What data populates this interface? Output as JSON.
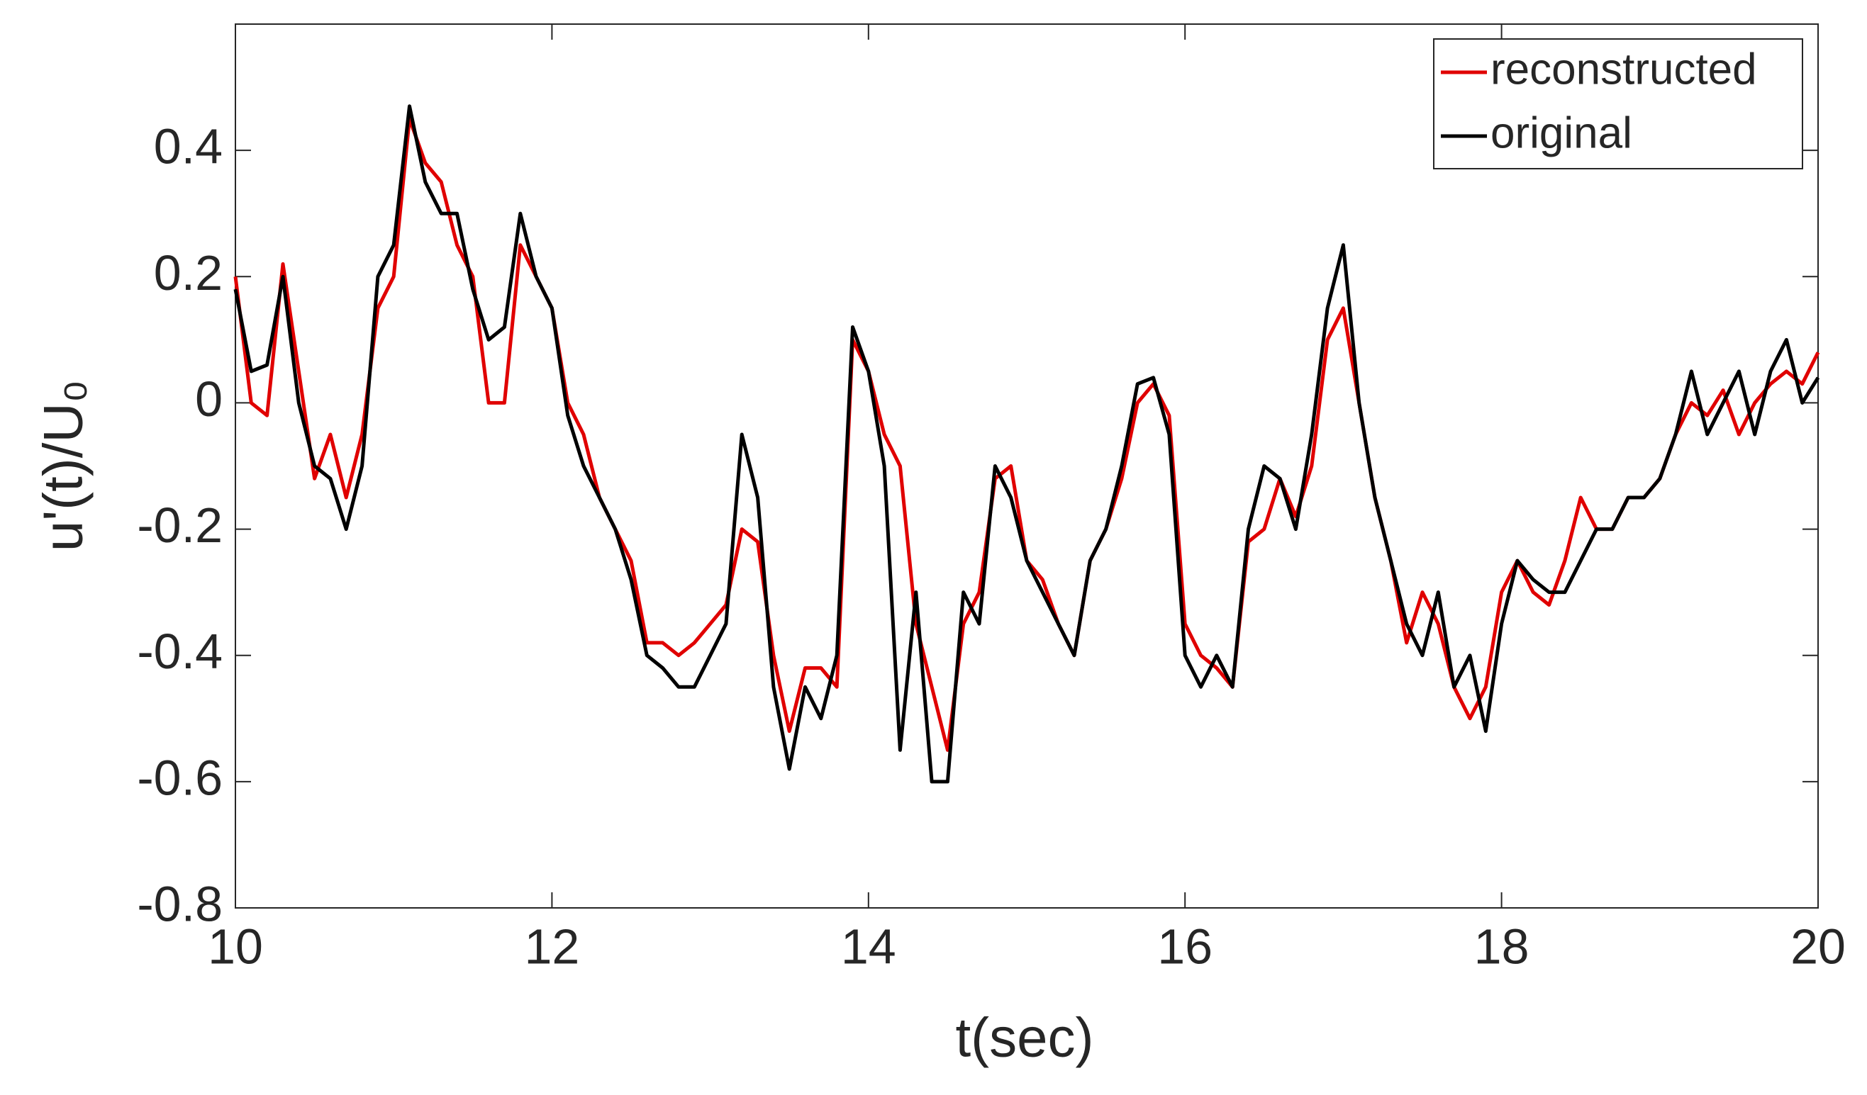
{
  "chart_data": {
    "type": "line",
    "xlabel": "t(sec)",
    "ylabel": "u'(t)/U₀",
    "xlim": [
      10,
      20
    ],
    "xticks": [
      10,
      12,
      14,
      16,
      18,
      20
    ],
    "ylim": [
      -0.8,
      0.6
    ],
    "yticks": [
      -0.8,
      -0.6,
      -0.4,
      -0.2,
      0,
      0.2,
      0.4
    ],
    "legend": "top-right",
    "x": [
      10.0,
      10.1,
      10.2,
      10.3,
      10.4,
      10.5,
      10.6,
      10.7,
      10.8,
      10.9,
      11.0,
      11.1,
      11.2,
      11.3,
      11.4,
      11.5,
      11.6,
      11.7,
      11.8,
      11.9,
      12.0,
      12.1,
      12.2,
      12.3,
      12.4,
      12.5,
      12.6,
      12.7,
      12.8,
      12.9,
      13.0,
      13.1,
      13.2,
      13.3,
      13.4,
      13.5,
      13.6,
      13.7,
      13.8,
      13.9,
      14.0,
      14.1,
      14.2,
      14.3,
      14.4,
      14.5,
      14.6,
      14.7,
      14.8,
      14.9,
      15.0,
      15.1,
      15.2,
      15.3,
      15.4,
      15.5,
      15.6,
      15.7,
      15.8,
      15.9,
      16.0,
      16.1,
      16.2,
      16.3,
      16.4,
      16.5,
      16.6,
      16.7,
      16.8,
      16.9,
      17.0,
      17.1,
      17.2,
      17.3,
      17.4,
      17.5,
      17.6,
      17.7,
      17.8,
      17.9,
      18.0,
      18.1,
      18.2,
      18.3,
      18.4,
      18.5,
      18.6,
      18.7,
      18.8,
      18.9,
      19.0,
      19.1,
      19.2,
      19.3,
      19.4,
      19.5,
      19.6,
      19.7,
      19.8,
      19.9,
      20.0
    ],
    "series": [
      {
        "name": "reconstructed",
        "color": "#e00000",
        "values": [
          0.2,
          0.0,
          -0.02,
          0.22,
          0.05,
          -0.12,
          -0.05,
          -0.15,
          -0.05,
          0.15,
          0.2,
          0.45,
          0.38,
          0.35,
          0.25,
          0.2,
          0.0,
          0.0,
          0.25,
          0.2,
          0.15,
          0.0,
          -0.05,
          -0.15,
          -0.2,
          -0.25,
          -0.38,
          -0.38,
          -0.4,
          -0.38,
          -0.35,
          -0.32,
          -0.2,
          -0.22,
          -0.4,
          -0.52,
          -0.42,
          -0.42,
          -0.45,
          0.1,
          0.05,
          -0.05,
          -0.1,
          -0.35,
          -0.45,
          -0.55,
          -0.35,
          -0.3,
          -0.12,
          -0.1,
          -0.25,
          -0.28,
          -0.35,
          -0.4,
          -0.25,
          -0.2,
          -0.12,
          0.0,
          0.03,
          -0.02,
          -0.35,
          -0.4,
          -0.42,
          -0.45,
          -0.22,
          -0.2,
          -0.12,
          -0.18,
          -0.1,
          0.1,
          0.15,
          0.0,
          -0.15,
          -0.25,
          -0.38,
          -0.3,
          -0.35,
          -0.45,
          -0.5,
          -0.45,
          -0.3,
          -0.25,
          -0.3,
          -0.32,
          -0.25,
          -0.15,
          -0.2,
          -0.2,
          -0.15,
          -0.15,
          -0.12,
          -0.05,
          0.0,
          -0.02,
          0.02,
          -0.05,
          0.0,
          0.03,
          0.05,
          0.03,
          0.08
        ]
      },
      {
        "name": "original",
        "color": "#000000",
        "values": [
          0.18,
          0.05,
          0.06,
          0.2,
          0.0,
          -0.1,
          -0.12,
          -0.2,
          -0.1,
          0.2,
          0.25,
          0.47,
          0.35,
          0.3,
          0.3,
          0.18,
          0.1,
          0.12,
          0.3,
          0.2,
          0.15,
          -0.02,
          -0.1,
          -0.15,
          -0.2,
          -0.28,
          -0.4,
          -0.42,
          -0.45,
          -0.45,
          -0.4,
          -0.35,
          -0.05,
          -0.15,
          -0.45,
          -0.58,
          -0.45,
          -0.5,
          -0.4,
          0.12,
          0.05,
          -0.1,
          -0.55,
          -0.3,
          -0.6,
          -0.6,
          -0.3,
          -0.35,
          -0.1,
          -0.15,
          -0.25,
          -0.3,
          -0.35,
          -0.4,
          -0.25,
          -0.2,
          -0.1,
          0.03,
          0.04,
          -0.05,
          -0.4,
          -0.45,
          -0.4,
          -0.45,
          -0.2,
          -0.1,
          -0.12,
          -0.2,
          -0.05,
          0.15,
          0.25,
          0.0,
          -0.15,
          -0.25,
          -0.35,
          -0.4,
          -0.3,
          -0.45,
          -0.4,
          -0.52,
          -0.35,
          -0.25,
          -0.28,
          -0.3,
          -0.3,
          -0.25,
          -0.2,
          -0.2,
          -0.15,
          -0.15,
          -0.12,
          -0.05,
          0.05,
          -0.05,
          0.0,
          0.05,
          -0.05,
          0.05,
          0.1,
          0.0,
          0.04
        ]
      }
    ]
  }
}
